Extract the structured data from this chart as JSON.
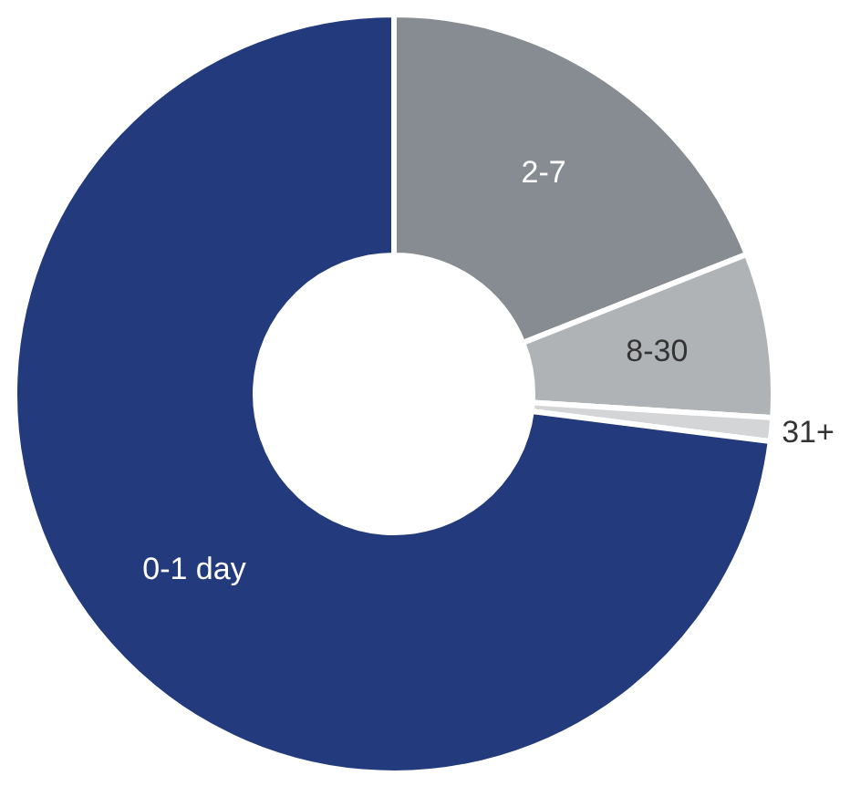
{
  "chart_data": {
    "type": "donut",
    "categories": [
      "2-7",
      "8-30",
      "31+",
      "0-1 day"
    ],
    "values": [
      19,
      7,
      1,
      73
    ],
    "colors": [
      "#878c93",
      "#b0b3b6",
      "#d3d5d7",
      "#233a7c"
    ]
  }
}
